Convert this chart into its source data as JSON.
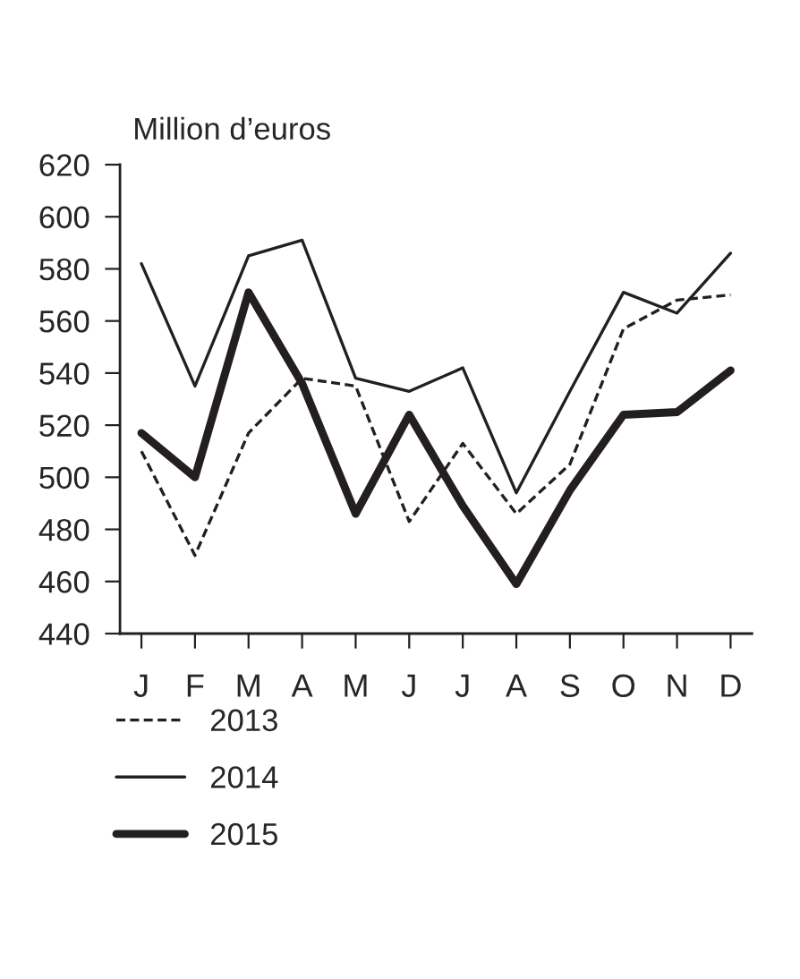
{
  "chart_data": {
    "type": "line",
    "ylabel": "Million d’euros",
    "categories": [
      "J",
      "F",
      "M",
      "A",
      "M",
      "J",
      "J",
      "A",
      "S",
      "O",
      "N",
      "D"
    ],
    "series": [
      {
        "name": "2013",
        "color": "#231f20",
        "line_style": "dashed",
        "values": [
          510,
          470,
          517,
          538,
          535,
          483,
          513,
          486,
          505,
          557,
          568,
          570
        ]
      },
      {
        "name": "2014",
        "color": "#231f20",
        "line_style": "solid",
        "values": [
          582,
          535,
          585,
          591,
          538,
          533,
          542,
          494,
          533,
          571,
          563,
          586
        ]
      },
      {
        "name": "2015",
        "color": "#231f20",
        "line_style": "solid",
        "values": [
          517,
          500,
          571,
          536,
          486,
          524,
          489,
          459,
          495,
          524,
          525,
          541
        ]
      }
    ],
    "ylim": [
      440,
      620
    ],
    "yticks": [
      440,
      460,
      480,
      500,
      520,
      540,
      560,
      580,
      600,
      620
    ],
    "grid": false,
    "legend": "bottom",
    "marker": "none"
  }
}
